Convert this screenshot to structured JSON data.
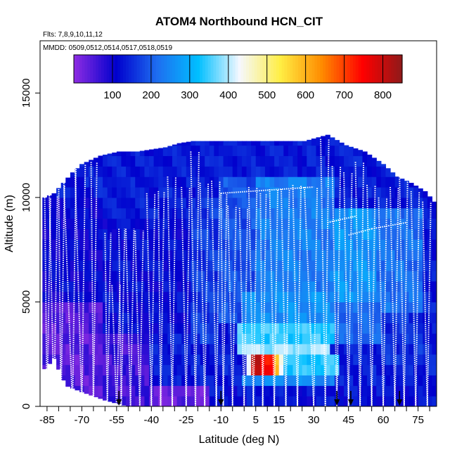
{
  "chart_data": {
    "type": "heatmap",
    "title": "ATOM4 Northbound HCN_CIT",
    "subtitle_flights": "Flts: 7,8,9,10,11,12",
    "subtitle_dates": "MMDD: 0509,0512,0514,0517,0518,0519",
    "xlabel": "Latitude (deg N)",
    "ylabel": "Altitude (m)",
    "xlim": [
      -88,
      83
    ],
    "ylim": [
      0,
      17500
    ],
    "x_ticks": [
      -85,
      -80,
      -75,
      -70,
      -65,
      -60,
      -55,
      -50,
      -45,
      -40,
      -35,
      -30,
      -25,
      -20,
      -15,
      -10,
      -5,
      0,
      5,
      10,
      15,
      20,
      25,
      30,
      35,
      40,
      45,
      50,
      55,
      60,
      65,
      70,
      75,
      80
    ],
    "x_tick_labels": [
      {
        "value": -85,
        "label": "-85"
      },
      {
        "value": -70,
        "label": "-70"
      },
      {
        "value": -55,
        "label": "-55"
      },
      {
        "value": -40,
        "label": "-40"
      },
      {
        "value": -25,
        "label": "-25"
      },
      {
        "value": -10,
        "label": "-10"
      },
      {
        "value": 5,
        "label": "5"
      },
      {
        "value": 15,
        "label": "15"
      },
      {
        "value": 30,
        "label": "30"
      },
      {
        "value": 45,
        "label": "45"
      },
      {
        "value": 60,
        "label": "60"
      },
      {
        "value": 75,
        "label": "75"
      }
    ],
    "y_ticks": [
      {
        "value": 0,
        "label": "0"
      },
      {
        "value": 5000,
        "label": "5000"
      },
      {
        "value": 10000,
        "label": "10000"
      },
      {
        "value": 15000,
        "label": "15000"
      }
    ],
    "colorbar": {
      "range": [
        0,
        850
      ],
      "tick_labels": [
        "100",
        "200",
        "300",
        "400",
        "500",
        "600",
        "700",
        "800"
      ],
      "tick_values": [
        100,
        200,
        300,
        400,
        500,
        600,
        700,
        800
      ],
      "colors": [
        "#8a2be2",
        "#0000cd",
        "#1e6ef0",
        "#00bfff",
        "#f5f8ff",
        "#ffee44",
        "#ff8c00",
        "#ff0000",
        "#8b1a1a"
      ]
    },
    "background_value": 130,
    "coverage": [
      {
        "lat": -86,
        "top": 10000
      },
      {
        "lat": -82,
        "top": 10200
      },
      {
        "lat": -78,
        "top": 10700
      },
      {
        "lat": -74,
        "top": 11200
      },
      {
        "lat": -70,
        "top": 11600
      },
      {
        "lat": -62,
        "top": 12000
      },
      {
        "lat": -54,
        "top": 12200
      },
      {
        "lat": -46,
        "top": 12200
      },
      {
        "lat": -40,
        "top": 12300
      },
      {
        "lat": -34,
        "top": 12400
      },
      {
        "lat": -28,
        "top": 12600
      },
      {
        "lat": -22,
        "top": 12700
      },
      {
        "lat": -14,
        "top": 12700
      },
      {
        "lat": -6,
        "top": 12700
      },
      {
        "lat": 2,
        "top": 12700
      },
      {
        "lat": 10,
        "top": 12700
      },
      {
        "lat": 18,
        "top": 12700
      },
      {
        "lat": 26,
        "top": 12700
      },
      {
        "lat": 36,
        "top": 13000
      },
      {
        "lat": 44,
        "top": 12500
      },
      {
        "lat": 52,
        "top": 12200
      },
      {
        "lat": 60,
        "top": 11600
      },
      {
        "lat": 66,
        "top": 11000
      },
      {
        "lat": 72,
        "top": 10700
      },
      {
        "lat": 78,
        "top": 10300
      },
      {
        "lat": 82,
        "top": 9800
      }
    ],
    "bottom_coverage": [
      {
        "lat": -86,
        "bottom": 1800
      },
      {
        "lat": -82,
        "bottom": 2300
      },
      {
        "lat": -77,
        "bottom": 1000
      },
      {
        "lat": -70,
        "bottom": 700
      },
      {
        "lat": -60,
        "bottom": 300
      },
      {
        "lat": -50,
        "bottom": 0
      },
      {
        "lat": 0,
        "bottom": 0
      },
      {
        "lat": 82,
        "bottom": 0
      }
    ],
    "patches": [
      {
        "lat_min": -88,
        "lat_max": -60,
        "alt_min": 0,
        "alt_max": 5000,
        "value": 40
      },
      {
        "lat_min": -60,
        "lat_max": -40,
        "alt_min": 0,
        "alt_max": 3500,
        "value": 60
      },
      {
        "lat_min": -40,
        "lat_max": -15,
        "alt_min": 0,
        "alt_max": 1200,
        "value": 30
      },
      {
        "lat_min": -88,
        "lat_max": -60,
        "alt_min": 5000,
        "alt_max": 10000,
        "value": 105
      },
      {
        "lat_min": -60,
        "lat_max": -20,
        "alt_min": 3500,
        "alt_max": 9000,
        "value": 115
      },
      {
        "lat_min": -22,
        "lat_max": -10,
        "alt_min": 3000,
        "alt_max": 10000,
        "value": 160
      },
      {
        "lat_min": -10,
        "lat_max": 5,
        "alt_min": 4000,
        "alt_max": 11000,
        "value": 185
      },
      {
        "lat_min": 5,
        "lat_max": 40,
        "alt_min": 5500,
        "alt_max": 10800,
        "value": 230
      },
      {
        "lat_min": 40,
        "lat_max": 58,
        "alt_min": 5000,
        "alt_max": 9500,
        "value": 260
      },
      {
        "lat_min": 58,
        "lat_max": 78,
        "alt_min": 4500,
        "alt_max": 9500,
        "value": 215
      },
      {
        "lat_min": 40,
        "lat_max": 62,
        "alt_min": 3000,
        "alt_max": 5000,
        "value": 205
      },
      {
        "lat_min": 0,
        "lat_max": 40,
        "alt_min": 4000,
        "alt_max": 5500,
        "value": 255
      },
      {
        "lat_min": -2,
        "lat_max": 40,
        "alt_min": 3000,
        "alt_max": 4000,
        "value": 340
      },
      {
        "lat_min": -2,
        "lat_max": 38,
        "alt_min": 2300,
        "alt_max": 3000,
        "value": 385
      },
      {
        "lat_min": 2,
        "lat_max": 18,
        "alt_min": 1300,
        "alt_max": 2300,
        "value": 450
      },
      {
        "lat_min": 5,
        "lat_max": 16,
        "alt_min": 1300,
        "alt_max": 2300,
        "value": 600
      },
      {
        "lat_min": 6,
        "lat_max": 14,
        "alt_min": 1300,
        "alt_max": 2300,
        "value": 730
      },
      {
        "lat_min": 4,
        "lat_max": 8,
        "alt_min": 1300,
        "alt_max": 2300,
        "value": 800
      },
      {
        "lat_min": 0,
        "lat_max": 40,
        "alt_min": 1000,
        "alt_max": 1300,
        "value": 250
      },
      {
        "lat_min": 18,
        "lat_max": 42,
        "alt_min": 1300,
        "alt_max": 2300,
        "value": 330
      },
      {
        "lat_min": -15,
        "lat_max": 80,
        "alt_min": 0,
        "alt_max": 1000,
        "value": 120
      },
      {
        "lat_min": 60,
        "lat_max": 78,
        "alt_min": 2000,
        "alt_max": 4500,
        "value": 150
      }
    ],
    "profiles": [
      {
        "lat_start": -86,
        "lat_end": -85,
        "top": 10000
      },
      {
        "lat_start": -84,
        "lat_end": -82,
        "top": 10100
      },
      {
        "lat_start": -80,
        "lat_end": -79,
        "top": 10600
      },
      {
        "lat_start": -78,
        "lat_end": -74,
        "top": 11400
      },
      {
        "lat_start": -73,
        "lat_end": -70,
        "top": 11600
      },
      {
        "lat_start": -66,
        "lat_end": -65,
        "top": 11700
      },
      {
        "lat_start": -60,
        "lat_end": -59,
        "top": 8300
      },
      {
        "lat_start": -57,
        "lat_end": -55,
        "top": 5800
      },
      {
        "lat_start": -54,
        "lat_end": -53,
        "top": 8500
      },
      {
        "lat_start": -51,
        "lat_end": -49,
        "top": 8500
      },
      {
        "lat_start": -47,
        "lat_end": -45,
        "top": 8400
      },
      {
        "lat_start": -42,
        "lat_end": -40,
        "top": 10200
      },
      {
        "lat_start": -37,
        "lat_end": -36,
        "top": 10300
      },
      {
        "lat_start": -33,
        "lat_end": -31,
        "top": 11000
      },
      {
        "lat_start": -27,
        "lat_end": -25,
        "top": 10500
      },
      {
        "lat_start": -23,
        "lat_end": -21,
        "top": 12200
      },
      {
        "lat_start": -19,
        "lat_end": -17,
        "top": 10700
      },
      {
        "lat_start": -14,
        "lat_end": -12,
        "top": 10800
      },
      {
        "lat_start": -10,
        "lat_end": -9,
        "top": 10200
      },
      {
        "lat_start": -7,
        "lat_end": -5,
        "top": 9600
      },
      {
        "lat_start": -2,
        "lat_end": 0,
        "top": 9500
      },
      {
        "lat_start": 2,
        "lat_end": 4,
        "top": 10500
      },
      {
        "lat_start": 7,
        "lat_end": 8,
        "top": 10200
      },
      {
        "lat_start": 11,
        "lat_end": 13,
        "top": 10400
      },
      {
        "lat_start": 16,
        "lat_end": 18,
        "top": 10400
      },
      {
        "lat_start": 21,
        "lat_end": 23,
        "top": 10600
      },
      {
        "lat_start": 26,
        "lat_end": 30,
        "top": 10500
      },
      {
        "lat_start": 33,
        "lat_end": 35,
        "top": 12800
      },
      {
        "lat_start": 38,
        "lat_end": 40,
        "top": 11500
      },
      {
        "lat_start": 43,
        "lat_end": 45,
        "top": 11200
      },
      {
        "lat_start": 48,
        "lat_end": 50,
        "top": 11700
      },
      {
        "lat_start": 53,
        "lat_end": 55,
        "top": 10600
      },
      {
        "lat_start": 58,
        "lat_end": 60,
        "top": 10000
      },
      {
        "lat_start": 63,
        "lat_end": 65,
        "top": 10500
      },
      {
        "lat_start": 67,
        "lat_end": 69,
        "top": 11000
      },
      {
        "lat_start": 72,
        "lat_end": 74,
        "top": 10300
      },
      {
        "lat_start": 77,
        "lat_end": 79,
        "top": 9800
      }
    ],
    "levels": [
      {
        "lat_start": 45,
        "lat_end": 55,
        "alt": 8200
      },
      {
        "lat_start": 36,
        "lat_end": 48,
        "alt": 8800
      },
      {
        "lat_start": -10,
        "lat_end": 30,
        "alt": 10200
      },
      {
        "lat_start": 55,
        "lat_end": 70,
        "alt": 8500
      }
    ],
    "markers": [
      -54,
      -10,
      40,
      46,
      67
    ]
  }
}
